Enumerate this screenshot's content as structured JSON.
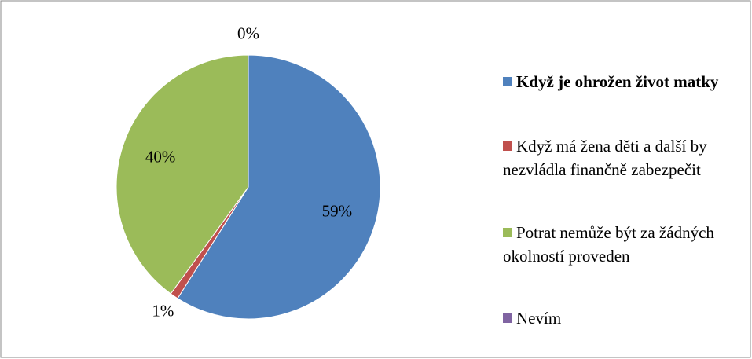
{
  "chart_data": {
    "type": "pie",
    "categories": [
      "Když je ohrožen život matky",
      "Když má žena děti a další by nezvládla finančně zabezpečit",
      "Potrat nemůže být za žádných okolností proveden",
      "Nevím"
    ],
    "values": [
      59,
      1,
      40,
      0
    ],
    "value_labels": [
      "59%",
      "1%",
      "40%",
      "0%"
    ],
    "colors": [
      "#4f81bd",
      "#c0504d",
      "#9bbb59",
      "#8064a2"
    ]
  }
}
